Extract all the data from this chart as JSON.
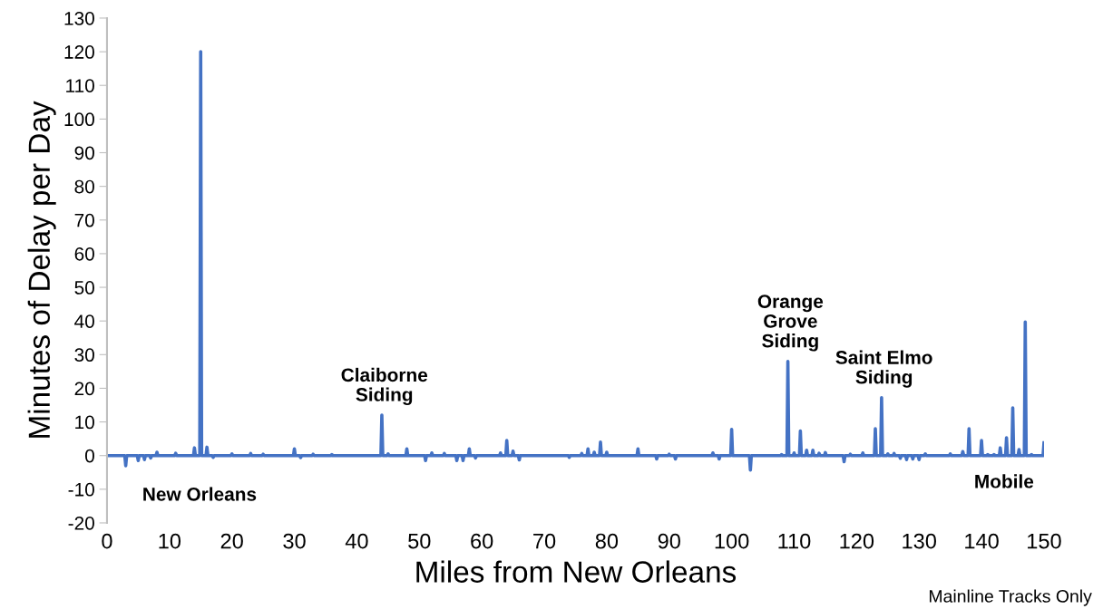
{
  "chart_data": {
    "type": "line",
    "xlabel": "Miles from New Orleans",
    "ylabel": "Minutes of Delay per Day",
    "xlim": [
      0,
      150
    ],
    "xticks": [
      0,
      10,
      20,
      30,
      40,
      50,
      60,
      70,
      80,
      90,
      100,
      110,
      120,
      130,
      140,
      150
    ],
    "ylim": [
      -20,
      130
    ],
    "yticks": [
      -20,
      -10,
      0,
      10,
      20,
      30,
      40,
      50,
      60,
      70,
      80,
      90,
      100,
      110,
      120,
      130
    ],
    "grid": false,
    "legend": false,
    "marker": "none",
    "line_style": "solid",
    "series": [
      {
        "color": "#4472c4",
        "x": [
          0,
          2.85,
          3,
          3.15,
          4.85,
          5,
          5.15,
          5.85,
          6,
          6.15,
          6.85,
          7,
          7.15,
          7.85,
          8,
          8.15,
          10.85,
          11,
          11.15,
          13.85,
          14,
          14.15,
          14.85,
          15,
          15.15,
          15.85,
          16,
          16.15,
          16.85,
          17,
          17.15,
          19.85,
          20,
          20.15,
          22.85,
          23,
          23.15,
          24.85,
          25,
          25.15,
          29.85,
          30,
          30.15,
          30.85,
          31,
          31.15,
          32.85,
          33,
          33.15,
          35.85,
          36,
          36.15,
          43.85,
          44,
          44.15,
          44.85,
          45,
          45.15,
          47.85,
          48,
          48.15,
          50.85,
          51,
          51.15,
          51.85,
          52,
          52.15,
          53.85,
          54,
          54.15,
          55.85,
          56,
          56.15,
          56.85,
          57,
          57.15,
          57.85,
          58,
          58.15,
          58.85,
          59,
          59.15,
          62.85,
          63,
          63.15,
          63.85,
          64,
          64.15,
          64.85,
          65,
          65.15,
          65.85,
          66,
          66.15,
          73.85,
          74,
          74.15,
          75.85,
          76,
          76.15,
          76.85,
          77,
          77.15,
          77.85,
          78,
          78.15,
          78.85,
          79,
          79.15,
          79.85,
          80,
          80.15,
          84.85,
          85,
          85.15,
          87.85,
          88,
          88.15,
          89.85,
          90,
          90.15,
          90.85,
          91,
          91.15,
          96.85,
          97,
          97.15,
          97.85,
          98,
          98.15,
          99.85,
          100,
          100.15,
          102.85,
          103,
          103.15,
          107.85,
          108,
          108.15,
          108.85,
          109,
          109.15,
          109.85,
          110,
          110.15,
          110.85,
          111,
          111.15,
          111.85,
          112,
          112.15,
          112.85,
          113,
          113.15,
          113.85,
          114,
          114.15,
          114.85,
          115,
          115.15,
          117.85,
          118,
          118.15,
          118.85,
          119,
          119.15,
          120.85,
          121,
          121.15,
          122.85,
          123,
          123.15,
          123.85,
          124,
          124.15,
          124.85,
          125,
          125.15,
          125.85,
          126,
          126.15,
          126.85,
          127,
          127.15,
          127.85,
          128,
          128.15,
          128.85,
          129,
          129.15,
          129.85,
          130,
          130.15,
          130.85,
          131,
          131.15,
          134.85,
          135,
          135.15,
          136.85,
          137,
          137.15,
          137.85,
          138,
          138.15,
          139.85,
          140,
          140.15,
          140.85,
          141,
          141.15,
          141.85,
          142,
          142.15,
          142.85,
          143,
          143.15,
          143.85,
          144,
          144.15,
          144.85,
          145,
          145.15,
          145.85,
          146,
          146.15,
          146.85,
          147,
          147.15,
          147.85,
          148,
          148.15,
          149.85,
          150
        ],
        "values": [
          0,
          0,
          -3,
          0,
          0,
          -1.5,
          0,
          0,
          -1.2,
          0,
          0,
          -0.7,
          0,
          0,
          1,
          0,
          0,
          0.7,
          0,
          0,
          2.3,
          0,
          0,
          120,
          0,
          0,
          2.5,
          0,
          0,
          -0.5,
          0,
          0,
          0.5,
          0,
          0,
          0.6,
          0,
          0,
          0.4,
          0,
          0,
          2,
          0,
          0,
          -0.6,
          0,
          0,
          0.4,
          0,
          0,
          0.3,
          0,
          0,
          12,
          0,
          0,
          0.5,
          0,
          0,
          2,
          0,
          0,
          -1.5,
          0,
          0,
          0.8,
          0,
          0,
          0.6,
          0,
          0,
          -1.5,
          0,
          0,
          -1.5,
          0,
          0,
          2,
          0,
          0,
          -0.7,
          0,
          0,
          0.8,
          0,
          0,
          4.5,
          0,
          0,
          1.3,
          0,
          0,
          -1.3,
          0,
          0,
          -0.5,
          0,
          0,
          0.6,
          0,
          0,
          2,
          0,
          0,
          1,
          0,
          0,
          4,
          0,
          0,
          1,
          0,
          0,
          2,
          0,
          0,
          -1,
          0,
          0,
          0.4,
          0,
          0,
          -1,
          0,
          0,
          0.8,
          0,
          0,
          -1,
          0,
          0,
          7.8,
          0,
          0,
          -4.3,
          0,
          0,
          0.3,
          0,
          0,
          28,
          0,
          0,
          0.8,
          0,
          0,
          7.3,
          0,
          0,
          1.6,
          0,
          0,
          1.6,
          0,
          0,
          0.7,
          0,
          0,
          0.9,
          0,
          0,
          -1.8,
          0,
          0,
          0.4,
          0,
          0,
          0.8,
          0,
          0,
          8,
          0,
          0,
          17.2,
          0,
          0,
          0.5,
          0,
          0,
          0.6,
          0,
          0,
          -0.8,
          0,
          0,
          -1.2,
          0,
          0,
          -1,
          0,
          0,
          -1.2,
          0,
          0,
          0.5,
          0,
          0,
          0.5,
          0,
          0,
          1.2,
          0,
          0,
          8,
          0,
          0,
          4.5,
          0,
          0,
          0.3,
          0,
          0,
          0.3,
          0,
          0,
          2.3,
          0,
          0,
          5.3,
          0,
          0,
          14.2,
          0,
          0,
          1.8,
          0,
          0,
          39.7,
          0,
          0,
          0.3,
          0,
          0,
          3.8
        ]
      }
    ],
    "annotations": [
      {
        "text": "New Orleans",
        "x": 0,
        "y": 0
      },
      {
        "text": "Claiborne\nSiding",
        "x": 44,
        "y": 12
      },
      {
        "text": "Orange\nGrove\nSiding",
        "x": 109,
        "y": 28
      },
      {
        "text": "Saint Elmo\nSiding",
        "x": 124,
        "y": 17.2
      },
      {
        "text": "Mobile",
        "x": 150,
        "y": 3.8
      },
      "Mainline Tracks Only"
    ]
  }
}
